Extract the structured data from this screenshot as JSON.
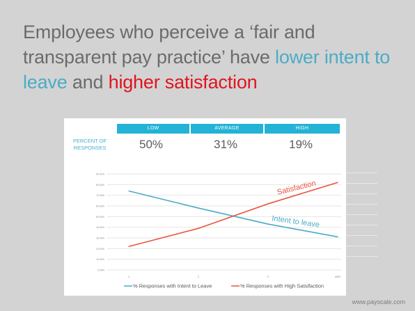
{
  "headline": {
    "part1": "Employees who perceive a ‘fair and transparent pay practice’ have ",
    "part2": "lower intent to leave",
    "part3": " and ",
    "part4": "higher satisfaction"
  },
  "table": {
    "row_label_line1": "PERCENT OF",
    "row_label_line2": "RESPONSES",
    "columns": [
      "LOW",
      "AVERAGE",
      "HIGH"
    ],
    "values": [
      "50%",
      "31%",
      "19%"
    ]
  },
  "footer": "www.payscale.com",
  "colors": {
    "intent": "#4bacc6",
    "satisfaction": "#e8543d",
    "header": "#23b3d6"
  },
  "chart_data": {
    "type": "line",
    "x": [
      "1",
      "2",
      "3",
      "ABS"
    ],
    "ylim": [
      0,
      90
    ],
    "yticks": [
      "0.00%",
      "10.00%",
      "20.00%",
      "30.00%",
      "40.00%",
      "50.00%",
      "60.00%",
      "70.00%",
      "80.00%",
      "90.00%"
    ],
    "series": [
      {
        "name": "% Responses with Intent to Leave",
        "values": [
          74,
          58,
          43,
          31
        ],
        "color": "#4bacc6"
      },
      {
        "name": "% Responses with High Satsifaction",
        "values": [
          22,
          39,
          62,
          82
        ],
        "color": "#e8543d"
      }
    ],
    "annotations": {
      "satisfaction": "Satisfaction",
      "intent": "Intent to leave"
    }
  }
}
